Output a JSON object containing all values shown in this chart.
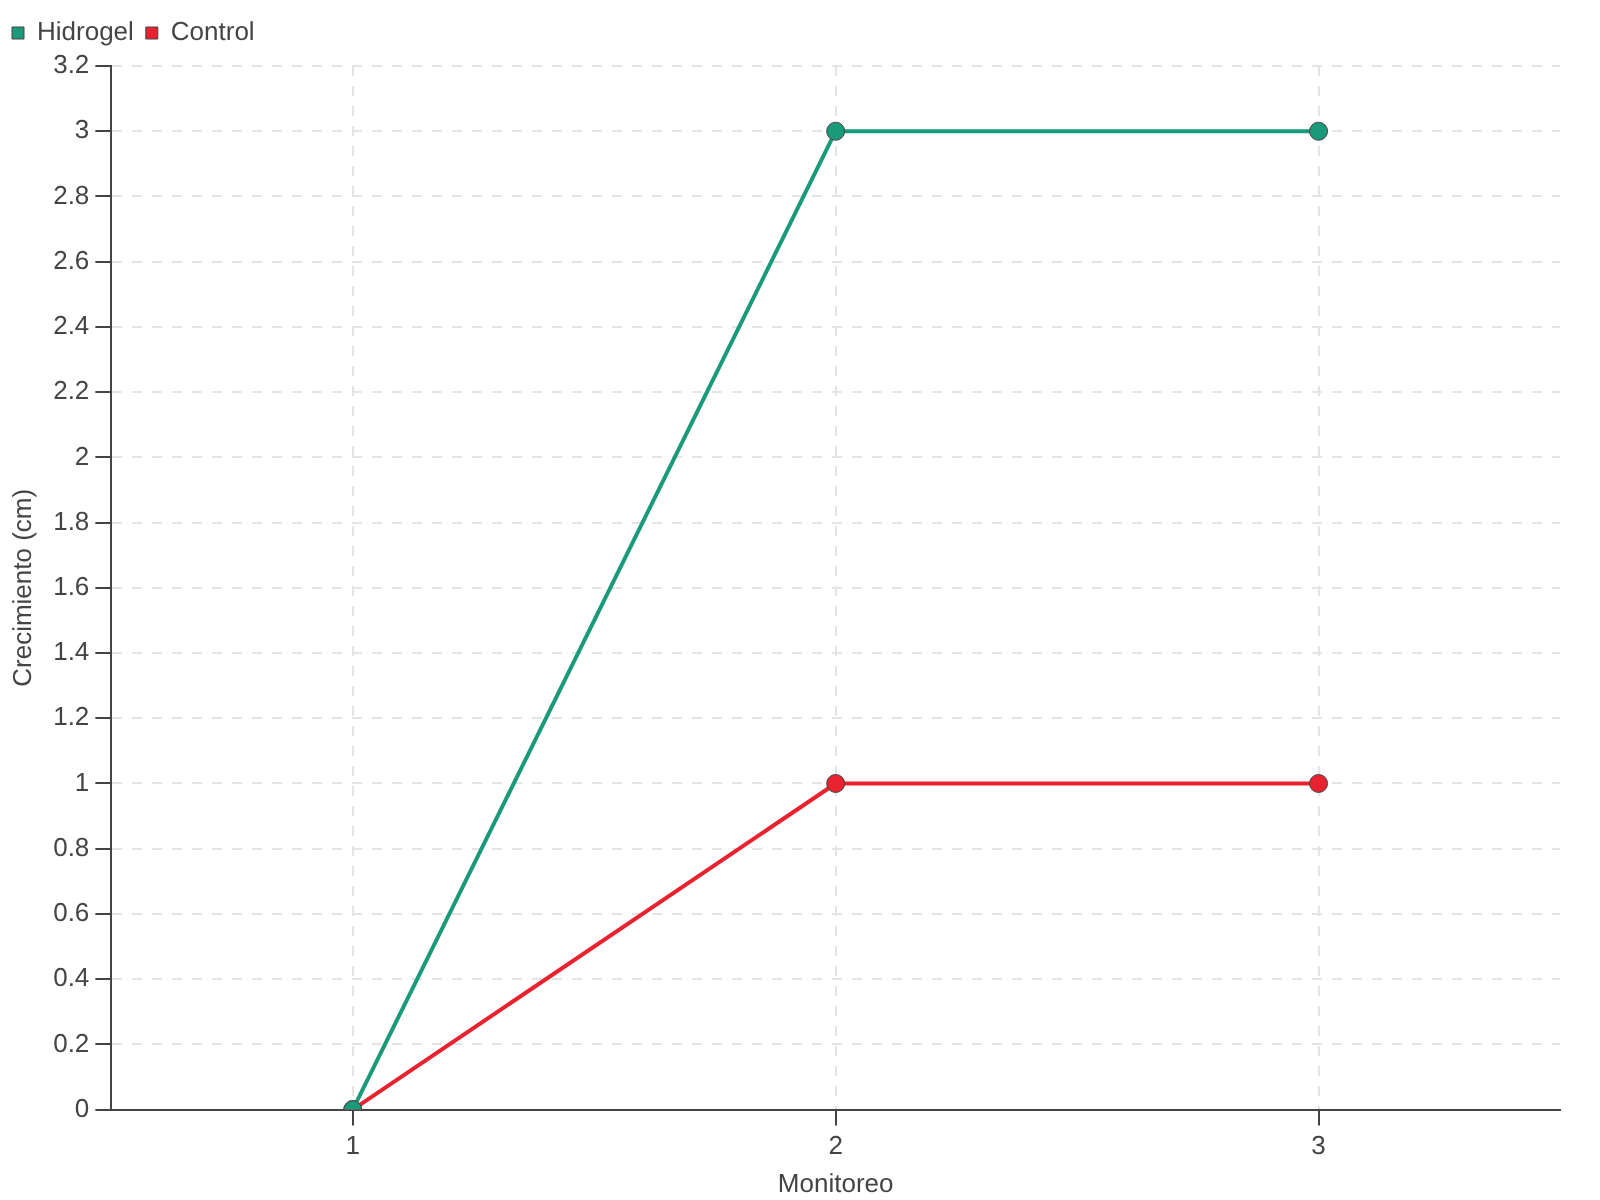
{
  "chart_data": {
    "type": "line",
    "xlabel": "Monitoreo",
    "ylabel": "Crecimiento (cm)",
    "categories": [
      "1",
      "2",
      "3"
    ],
    "series": [
      {
        "name": "Hidrogel",
        "color": "#1a9a7a",
        "values": [
          0,
          3,
          3
        ]
      },
      {
        "name": "Control",
        "color": "#e8222e",
        "values": [
          0,
          1,
          1
        ]
      }
    ],
    "ylim": [
      0,
      3.2
    ],
    "yticks": [
      0,
      0.2,
      0.4,
      0.6,
      0.8,
      1,
      1.2,
      1.4,
      1.6,
      1.8,
      2,
      2.2,
      2.4,
      2.6,
      2.8,
      3,
      3.2
    ],
    "grid": true,
    "legend": "top left",
    "marker": "circle",
    "line_style": "solid"
  }
}
